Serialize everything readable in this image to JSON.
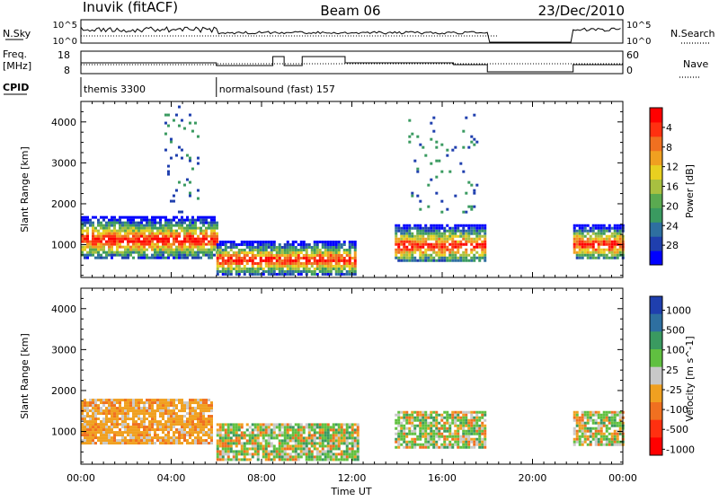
{
  "header": {
    "station": "Inuvik (fitACF)",
    "beam": "Beam 06",
    "date": "23/Dec/2010"
  },
  "params": {
    "nsky_label": "N.Sky",
    "nsky_tick_hi": "10^5",
    "nsky_tick_lo": "10^0",
    "nsearch_label": "N.Search",
    "nsearch_tick_hi": "10^5",
    "nsearch_tick_lo": "10^0",
    "freq_label_1": "Freq.",
    "freq_label_2": "[MHz]",
    "freq_tick_hi": "18",
    "freq_tick_lo": "8",
    "nave_label": "Nave",
    "nave_tick_hi": "60",
    "nave_tick_lo": "0",
    "cpid_label": "CPID",
    "cpid_segments": [
      {
        "label": "themis 3300",
        "start_hour": 0,
        "end_hour": 6
      },
      {
        "label": "normalsound (fast) 157",
        "start_hour": 6,
        "end_hour": 24
      }
    ]
  },
  "chart_data": [
    {
      "type": "heatmap",
      "title": "Power",
      "ylabel": "Slant Range [km]",
      "xlabel": "",
      "xlim_hours": [
        0,
        24
      ],
      "ylim": [
        200,
        4500
      ],
      "yticks": [
        1000,
        2000,
        3000,
        4000
      ],
      "colorbar": {
        "label": "Power [dB]",
        "ticks": [
          "4",
          "8",
          "12",
          "16",
          "20",
          "24",
          "28"
        ],
        "colors": [
          "#0000ff",
          "#1f3fae",
          "#2e6fa0",
          "#3a9a60",
          "#5aaa50",
          "#a8c040",
          "#e8d020",
          "#f0a020",
          "#f07020",
          "#ff3010",
          "#ff0000"
        ]
      },
      "echo_regions": [
        {
          "t0": 0.0,
          "t1": 6.0,
          "r0": 700,
          "r1": 1700,
          "level": "high"
        },
        {
          "t0": 6.0,
          "t1": 12.2,
          "r0": 300,
          "r1": 1100,
          "level": "high"
        },
        {
          "t0": 13.9,
          "t1": 17.9,
          "r0": 600,
          "r1": 1500,
          "level": "high"
        },
        {
          "t0": 21.8,
          "t1": 24.0,
          "r0": 650,
          "r1": 1500,
          "level": "high"
        },
        {
          "t0": 3.7,
          "t1": 5.2,
          "r0": 1800,
          "r1": 4400,
          "level": "scatter"
        },
        {
          "t0": 14.5,
          "t1": 17.5,
          "r0": 1800,
          "r1": 4200,
          "level": "scatter"
        }
      ]
    },
    {
      "type": "heatmap",
      "title": "Velocity",
      "ylabel": "Slant Range [km]",
      "xlabel": "Time UT",
      "xticks": [
        "00:00",
        "04:00",
        "08:00",
        "12:00",
        "16:00",
        "20:00",
        "00:00"
      ],
      "xlim_hours": [
        0,
        24
      ],
      "ylim": [
        200,
        4500
      ],
      "yticks": [
        1000,
        2000,
        3000,
        4000
      ],
      "colorbar": {
        "label": "Velocity [m s^-1]",
        "ticks": [
          "1000",
          "500",
          "100",
          "25",
          "-25",
          "-100",
          "-500",
          "-1000"
        ],
        "colors": [
          "#1f3fae",
          "#2e6fa0",
          "#3a9a60",
          "#60c040",
          "#c8c8c8",
          "#f0a020",
          "#f07020",
          "#ff3010",
          "#ff0000"
        ]
      },
      "echo_regions": [
        {
          "t0": 0.0,
          "t1": 5.8,
          "r0": 700,
          "r1": 1800,
          "level": "negative"
        },
        {
          "t0": 6.0,
          "t1": 12.3,
          "r0": 300,
          "r1": 1200,
          "level": "mixed"
        },
        {
          "t0": 13.9,
          "t1": 17.9,
          "r0": 600,
          "r1": 1500,
          "level": "mixed"
        },
        {
          "t0": 21.8,
          "t1": 24.0,
          "r0": 650,
          "r1": 1500,
          "level": "mixed"
        }
      ]
    }
  ]
}
